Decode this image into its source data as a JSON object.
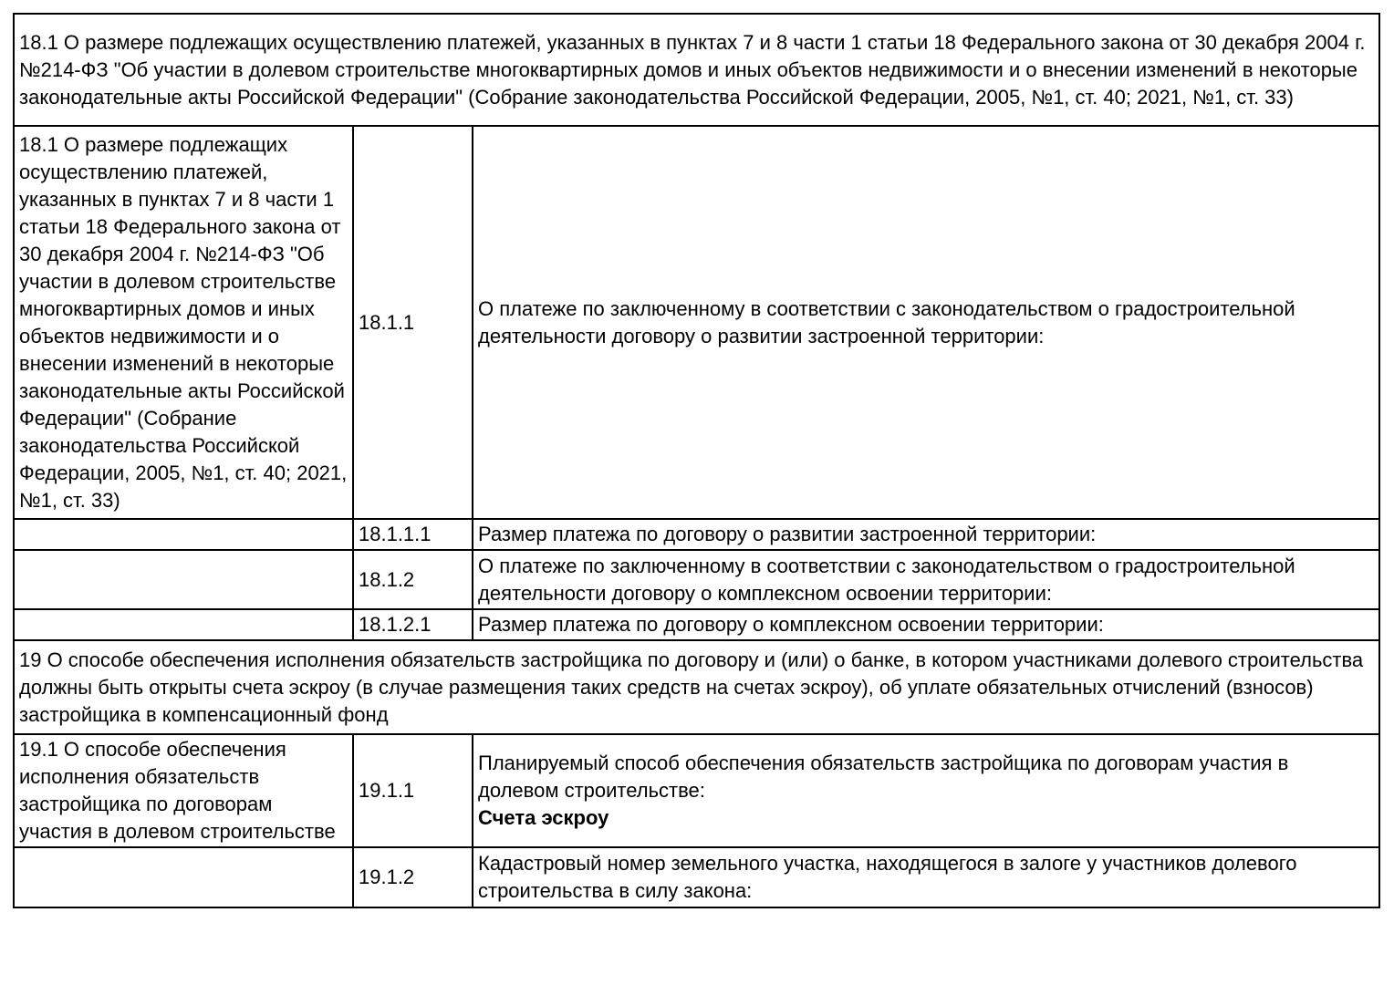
{
  "colors": {
    "background": "#ffffff",
    "text": "#000000",
    "border": "#000000"
  },
  "table": {
    "section_18_1_header": "18.1 О размере подлежащих осуществлению платежей, указанных в пунктах 7 и 8 части 1 статьи 18 Федерального закона от 30 декабря 2004 г. №214-ФЗ \"Об участии в долевом строительстве многоквартирных домов и иных объектов недвижимости и о внесении изменений в некоторые законодательные акты Российской Федерации\" (Собрание законодательства Российской Федерации, 2005, №1, ст. 40; 2021, №1, ст. 33)",
    "row_18_1_1": {
      "left": "18.1 О размере подлежащих осуществлению платежей, указанных в пунктах 7 и 8 части 1 статьи 18 Федерального закона от 30 декабря 2004 г. №214-ФЗ \"Об участии в долевом строительстве многоквартирных домов и иных объектов недвижимости и о внесении изменений в некоторые законодательные акты Российской Федерации\" (Собрание законодательства Российской Федерации, 2005, №1, ст. 40; 2021, №1, ст. 33)",
      "num": "18.1.1",
      "text": "О платеже по заключенному в соответствии с законодательством о градостроительной деятельности договору о развитии застроенной территории:"
    },
    "row_18_1_1_1": {
      "num": "18.1.1.1",
      "text": "Размер платежа по договору о развитии застроенной территории:"
    },
    "row_18_1_2": {
      "num": "18.1.2",
      "text": "О платеже по заключенному в соответствии с законодательством о градостроительной деятельности договору о комплексном освоении территории:"
    },
    "row_18_1_2_1": {
      "num": "18.1.2.1",
      "text": "Размер платежа по договору о комплексном освоении территории:"
    },
    "section_19_header": "19 О способе обеспечения исполнения обязательств застройщика по договору и (или) о банке, в котором участниками долевого строительства должны быть открыты счета эскроу (в случае размещения таких средств на счетах эскроу), об уплате обязательных отчислений (взносов) застройщика в компенсационный фонд",
    "row_19_1_1": {
      "left": "19.1 О способе обеспечения исполнения обязательств застройщика по договорам участия в долевом строительстве",
      "num": "19.1.1",
      "text": "Планируемый способ обеспечения обязательств застройщика по договорам участия в долевом строительстве:",
      "value": "Счета эскроу"
    },
    "row_19_1_2": {
      "num": "19.1.2",
      "text": "Кадастровый номер земельного участка, находящегося в залоге у участников долевого строительства в силу закона:"
    }
  }
}
